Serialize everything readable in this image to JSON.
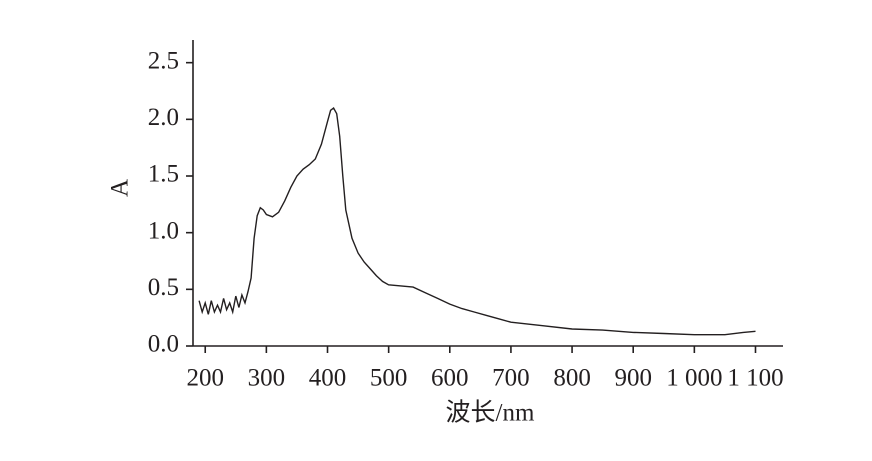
{
  "chart_data": {
    "type": "line",
    "x_label": "波长/nm",
    "y_label": "A",
    "x": [
      190,
      195,
      200,
      205,
      210,
      215,
      220,
      225,
      230,
      235,
      240,
      245,
      250,
      255,
      260,
      265,
      270,
      275,
      280,
      285,
      290,
      295,
      300,
      310,
      320,
      330,
      340,
      350,
      360,
      370,
      380,
      390,
      400,
      405,
      410,
      415,
      420,
      425,
      430,
      440,
      450,
      460,
      470,
      480,
      490,
      500,
      520,
      540,
      560,
      580,
      600,
      620,
      640,
      660,
      680,
      700,
      750,
      800,
      850,
      900,
      950,
      1000,
      1050,
      1080,
      1100
    ],
    "series": [
      {
        "color": "#231f20",
        "values": [
          0.4,
          0.3,
          0.38,
          0.28,
          0.4,
          0.3,
          0.36,
          0.3,
          0.42,
          0.32,
          0.38,
          0.3,
          0.44,
          0.34,
          0.45,
          0.38,
          0.48,
          0.6,
          0.95,
          1.15,
          1.22,
          1.2,
          1.16,
          1.14,
          1.18,
          1.28,
          1.4,
          1.5,
          1.56,
          1.6,
          1.65,
          1.78,
          1.98,
          2.08,
          2.1,
          2.05,
          1.85,
          1.5,
          1.2,
          0.95,
          0.82,
          0.74,
          0.68,
          0.62,
          0.57,
          0.54,
          0.53,
          0.52,
          0.47,
          0.42,
          0.37,
          0.33,
          0.3,
          0.27,
          0.24,
          0.21,
          0.18,
          0.15,
          0.14,
          0.12,
          0.11,
          0.1,
          0.1,
          0.12,
          0.13
        ]
      }
    ],
    "xlim": [
      180,
      1145
    ],
    "ylim": [
      0,
      2.7
    ],
    "xticks": [
      200,
      300,
      400,
      500,
      600,
      700,
      800,
      900,
      {
        "value": 1000,
        "label": "1 000"
      },
      {
        "value": 1100,
        "label": "1 100"
      }
    ],
    "yticks": [
      {
        "value": 0,
        "label": "0.0"
      },
      0.5,
      {
        "value": 1,
        "label": "1.0"
      },
      1.5,
      {
        "value": 2,
        "label": "2.0"
      },
      2.5
    ]
  }
}
